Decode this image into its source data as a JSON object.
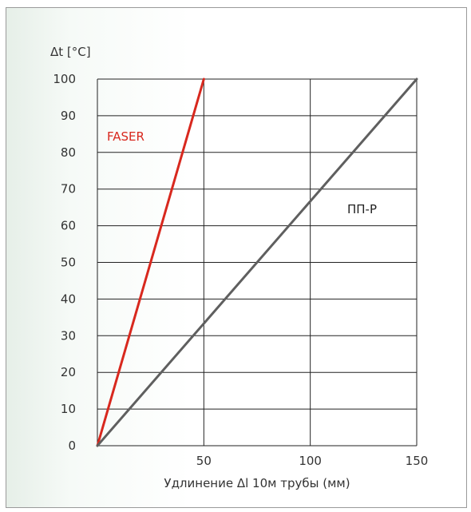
{
  "chart_data": {
    "type": "line",
    "ylabel": "Δt [°C]",
    "xlabel": "Удлинение Δl 10м трубы (мм)",
    "xlim": [
      0,
      150
    ],
    "ylim": [
      0,
      100
    ],
    "x_ticks": [
      50,
      100,
      150
    ],
    "y_ticks": [
      0,
      10,
      20,
      30,
      40,
      50,
      60,
      70,
      80,
      90,
      100
    ],
    "grid": true,
    "series": [
      {
        "name": "FASER",
        "color": "#d8281e",
        "x": [
          0,
          50
        ],
        "y": [
          0,
          100
        ]
      },
      {
        "name": "ПП-Р",
        "color": "#5f5f5f",
        "x": [
          0,
          150
        ],
        "y": [
          0,
          100
        ]
      }
    ]
  }
}
